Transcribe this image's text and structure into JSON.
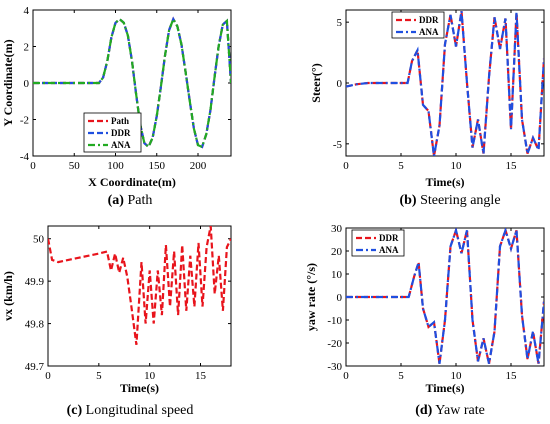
{
  "chart_data": [
    {
      "type": "line",
      "caption_letter": "(a)",
      "caption_text": "Path",
      "xlabel": "X Coordinate(m)",
      "ylabel": "Y Coordinate(m)",
      "xlim": [
        0,
        240
      ],
      "ylim": [
        -4,
        4
      ],
      "xticks": [
        "0",
        "50",
        "100",
        "150",
        "200"
      ],
      "yticks": [
        "-4",
        "-2",
        "0",
        "2",
        "4"
      ],
      "grid": false,
      "legend_position": "bottom-center",
      "series": [
        {
          "name": "Path",
          "color": "#e8141c",
          "dash": "dashed",
          "x": [
            0,
            20,
            40,
            60,
            80,
            85,
            90,
            95,
            100,
            105,
            110,
            115,
            120,
            125,
            130,
            135,
            140,
            145,
            150,
            155,
            160,
            165,
            170,
            175,
            180,
            185,
            190,
            195,
            200,
            205,
            210,
            215,
            220,
            225,
            230,
            235,
            240
          ],
          "y": [
            0,
            0,
            0,
            0,
            0,
            0.3,
            1.2,
            2.5,
            3.3,
            3.5,
            3.3,
            2.6,
            1.2,
            -0.6,
            -2.3,
            -3.3,
            -3.5,
            -3.0,
            -1.8,
            -0.2,
            1.5,
            2.9,
            3.5,
            3.1,
            2.1,
            0.6,
            -1.0,
            -2.5,
            -3.4,
            -3.5,
            -2.8,
            -1.5,
            0.3,
            2.0,
            3.2,
            3.4,
            0
          ]
        },
        {
          "name": "DDR",
          "color": "#1f4fe0",
          "dash": "dashed",
          "x": [
            0,
            20,
            40,
            60,
            80,
            85,
            90,
            95,
            100,
            105,
            110,
            115,
            120,
            125,
            130,
            135,
            140,
            145,
            150,
            155,
            160,
            165,
            170,
            175,
            180,
            185,
            190,
            195,
            200,
            205,
            210,
            215,
            220,
            225,
            230,
            235,
            240
          ],
          "y": [
            0,
            0,
            0,
            0,
            0,
            0.3,
            1.2,
            2.5,
            3.3,
            3.5,
            3.3,
            2.6,
            1.2,
            -0.6,
            -2.3,
            -3.3,
            -3.5,
            -3.0,
            -1.8,
            -0.2,
            1.5,
            2.9,
            3.5,
            3.1,
            2.1,
            0.6,
            -1.0,
            -2.5,
            -3.4,
            -3.5,
            -2.8,
            -1.5,
            0.3,
            2.0,
            3.2,
            3.4,
            0
          ]
        },
        {
          "name": "ANA",
          "color": "#22aa22",
          "dash": "dashdot",
          "x": [
            0,
            20,
            40,
            60,
            80,
            85,
            90,
            95,
            100,
            105,
            110,
            115,
            120,
            125,
            130,
            135,
            140,
            145,
            150,
            155,
            160,
            165,
            170,
            175,
            180,
            185,
            190,
            195,
            200,
            205,
            210,
            215,
            220,
            225,
            230,
            235,
            240
          ],
          "y": [
            0,
            0,
            0,
            0,
            0,
            0.3,
            1.2,
            2.5,
            3.3,
            3.5,
            3.3,
            2.6,
            1.2,
            -0.6,
            -2.3,
            -3.3,
            -3.5,
            -3.0,
            -1.8,
            -0.2,
            1.5,
            2.9,
            3.5,
            3.1,
            2.1,
            0.6,
            -1.0,
            -2.5,
            -3.4,
            -3.5,
            -2.8,
            -1.5,
            0.3,
            2.0,
            3.2,
            3.4,
            0
          ]
        }
      ]
    },
    {
      "type": "line",
      "caption_letter": "(b)",
      "caption_text": "Steering angle",
      "xlabel": "Time(s)",
      "ylabel": "Steer(°)",
      "xlim": [
        0,
        18
      ],
      "ylim": [
        -6,
        6
      ],
      "xticks": [
        "0",
        "5",
        "10",
        "15"
      ],
      "yticks": [
        "-5",
        "0",
        "5"
      ],
      "grid": false,
      "legend_position": "top-center",
      "series": [
        {
          "name": "DDR",
          "color": "#e8141c",
          "dash": "dashed",
          "x": [
            0,
            1,
            2,
            3,
            4,
            5,
            5.6,
            6,
            6.5,
            7,
            7.5,
            8,
            8.5,
            9,
            9.5,
            10,
            10.5,
            11,
            11.5,
            12,
            12.5,
            13,
            13.5,
            14,
            14.5,
            15,
            15.5,
            16,
            16.5,
            17,
            17.5,
            18
          ],
          "y": [
            -0.3,
            -0.1,
            0,
            0,
            0,
            0,
            0,
            1.8,
            2.7,
            -1.8,
            -2.3,
            -6,
            -3.5,
            3.2,
            5.6,
            3.0,
            5.9,
            0,
            -5.3,
            -3.0,
            -5.8,
            0.5,
            5.4,
            2.8,
            5.3,
            -3.8,
            5.8,
            -3.0,
            -5.8,
            -4.5,
            -5.5,
            2.0
          ]
        },
        {
          "name": "ANA",
          "color": "#1f4fe0",
          "dash": "dashdot",
          "x": [
            0,
            1,
            2,
            3,
            4,
            5,
            5.6,
            6,
            6.5,
            7,
            7.5,
            8,
            8.5,
            9,
            9.5,
            10,
            10.5,
            11,
            11.5,
            12,
            12.5,
            13,
            13.5,
            14,
            14.5,
            15,
            15.5,
            16,
            16.5,
            17,
            17.5,
            18
          ],
          "y": [
            -0.3,
            -0.1,
            0,
            0,
            0,
            0,
            0,
            1.8,
            2.7,
            -1.8,
            -2.3,
            -6,
            -3.5,
            3.2,
            5.6,
            3.0,
            5.9,
            0,
            -5.3,
            -3.0,
            -5.8,
            0.5,
            5.4,
            2.8,
            5.3,
            -3.8,
            5.8,
            -3.0,
            -5.8,
            -4.5,
            -5.5,
            2.0
          ]
        }
      ]
    },
    {
      "type": "line",
      "caption_letter": "(c)",
      "caption_text": "Longitudinal speed",
      "xlabel": "Time(s)",
      "ylabel": "vx (km/h)",
      "xlim": [
        0,
        18
      ],
      "ylim": [
        49.7,
        50.03
      ],
      "xticks": [
        "0",
        "5",
        "10",
        "15"
      ],
      "yticks": [
        "49.7",
        "49.8",
        "49.9",
        "50"
      ],
      "grid": false,
      "legend_position": "none",
      "series": [
        {
          "name": "",
          "color": "#e8141c",
          "dash": "dashed",
          "x": [
            0,
            0.4,
            1,
            2,
            3,
            4,
            5,
            5.8,
            6.2,
            6.6,
            7,
            7.4,
            7.8,
            8.2,
            8.7,
            9.2,
            9.6,
            10,
            10.4,
            10.8,
            11.2,
            11.6,
            12,
            12.4,
            12.8,
            13.2,
            13.6,
            14,
            14.4,
            14.8,
            15.2,
            15.6,
            16,
            16.4,
            16.8,
            17.2,
            17.6,
            18
          ],
          "y": [
            50,
            49.95,
            49.945,
            49.95,
            49.955,
            49.96,
            49.965,
            49.97,
            49.925,
            49.965,
            49.92,
            49.955,
            49.91,
            49.84,
            49.75,
            49.945,
            49.8,
            49.925,
            49.8,
            49.925,
            49.82,
            49.985,
            49.84,
            49.97,
            49.82,
            49.985,
            49.83,
            49.96,
            49.84,
            49.99,
            49.84,
            49.98,
            50.03,
            49.87,
            49.96,
            49.83,
            49.98,
            50.0
          ]
        }
      ]
    },
    {
      "type": "line",
      "caption_letter": "(d)",
      "caption_text": "Yaw rate",
      "xlabel": "Time(s)",
      "ylabel": "yaw rate (°/s)",
      "xlim": [
        0,
        18
      ],
      "ylim": [
        -30,
        30
      ],
      "xticks": [
        "0",
        "5",
        "10",
        "15"
      ],
      "yticks": [
        "-30",
        "-20",
        "-10",
        "0",
        "10",
        "20",
        "30"
      ],
      "grid": false,
      "legend_position": "top-left",
      "series": [
        {
          "name": "DDR",
          "color": "#e8141c",
          "dash": "dashed",
          "x": [
            0,
            1,
            2,
            3,
            4,
            5,
            5.7,
            6.2,
            6.6,
            7,
            7.5,
            8,
            8.5,
            9,
            9.5,
            10,
            10.5,
            11,
            11.5,
            12,
            12.5,
            13,
            13.5,
            14,
            14.5,
            15,
            15.5,
            16,
            16.5,
            17,
            17.5,
            18
          ],
          "y": [
            0,
            0,
            0,
            0,
            0,
            0,
            0,
            9,
            15,
            -5,
            -13,
            -11,
            -29,
            -10,
            22,
            29,
            19,
            29,
            -10,
            -28,
            -18,
            -29,
            -15,
            22,
            29,
            21,
            29,
            -8,
            -27,
            -15,
            -29,
            -2
          ]
        },
        {
          "name": "ANA",
          "color": "#1f4fe0",
          "dash": "dashdot",
          "x": [
            0,
            1,
            2,
            3,
            4,
            5,
            5.7,
            6.2,
            6.6,
            7,
            7.5,
            8,
            8.5,
            9,
            9.5,
            10,
            10.5,
            11,
            11.5,
            12,
            12.5,
            13,
            13.5,
            14,
            14.5,
            15,
            15.5,
            16,
            16.5,
            17,
            17.5,
            18
          ],
          "y": [
            0,
            0,
            0,
            0,
            0,
            0,
            0,
            9,
            15,
            -5,
            -13,
            -11,
            -29,
            -10,
            22,
            29,
            19,
            29,
            -10,
            -28,
            -18,
            -29,
            -15,
            22,
            29,
            21,
            29,
            -8,
            -27,
            -15,
            -29,
            -2
          ]
        }
      ]
    }
  ]
}
